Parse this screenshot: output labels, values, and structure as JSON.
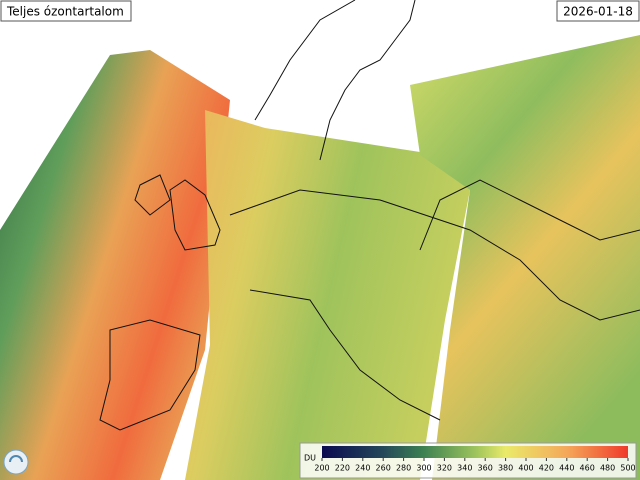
{
  "title": "Teljes ózontartalom",
  "date": "2026-01-18",
  "colorbar": {
    "unit": "DU",
    "ticks": [
      200,
      220,
      240,
      260,
      280,
      300,
      320,
      340,
      360,
      380,
      400,
      420,
      440,
      460,
      480,
      500
    ]
  }
}
